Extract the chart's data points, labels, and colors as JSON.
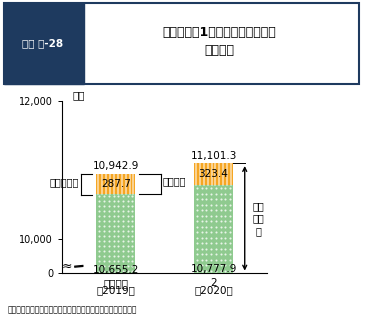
{
  "title_box_label": "図表 特-28",
  "title_main": "法人経営体1経営体当たりの農業\n経営収支",
  "ylabel": "万円",
  "bars": [
    {
      "green": 10655.2,
      "orange": 287.7,
      "total": 10942.9
    },
    {
      "green": 10777.9,
      "orange": 323.4,
      "total": 11101.3
    }
  ],
  "xtick1_line1": "令和元年",
  "xtick1_line2": "（2019）",
  "xtick2_line1": "2",
  "xtick2_line2": "（2020）",
  "color_green": "#8fca8f",
  "color_orange": "#F5A623",
  "color_title_box": "#1e3a5f",
  "color_border": "#1e3a5f",
  "label_keiei_hi": "農業経営費",
  "label_shotoku": "農業所得",
  "label_soso_seki": "農業\n粗収\n益",
  "source": "資料：農林水産省「農業経営統計調査　営農類型別経営統計」",
  "ytick_0": "0",
  "ytick_10000": "10,000",
  "ytick_12000": "12,000"
}
